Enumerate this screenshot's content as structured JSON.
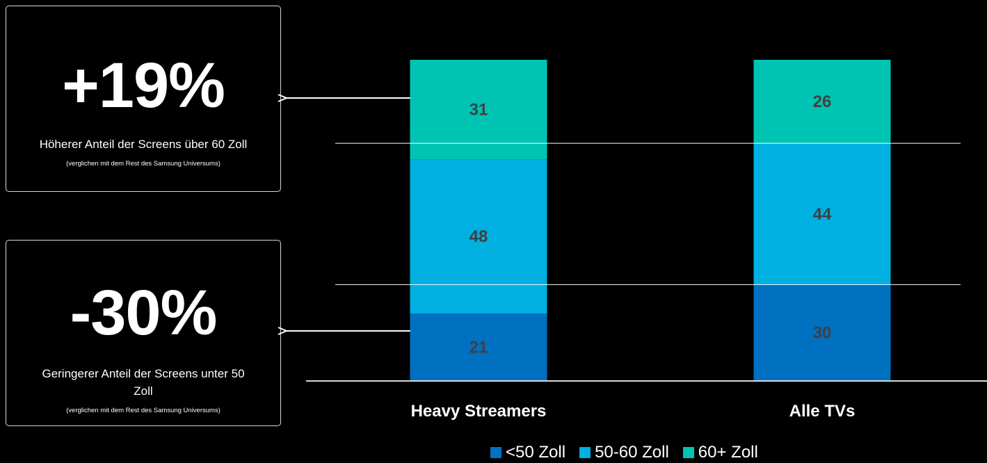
{
  "callouts": [
    {
      "value": "+19%",
      "description": "Höherer Anteil der Screens über 60 Zoll",
      "note": "(verglichen mit dem Rest des Samsung Universums)"
    },
    {
      "value": "-30%",
      "description": "Geringerer Anteil der Screens unter 50 Zoll",
      "note": "(verglichen mit dem Rest des Samsung Universums)"
    }
  ],
  "chart_data": {
    "type": "bar",
    "stacked": true,
    "categories": [
      "Heavy Streamers",
      "Alle TVs"
    ],
    "series": [
      {
        "name": "<50 Zoll",
        "values": [
          21,
          30
        ],
        "color": "#0070c0"
      },
      {
        "name": "50-60 Zoll",
        "values": [
          48,
          44
        ],
        "color": "#00b0e0"
      },
      {
        "name": "60+ Zoll",
        "values": [
          31,
          26
        ],
        "color": "#00c4b3"
      }
    ],
    "title": "",
    "xlabel": "",
    "ylabel": "",
    "ylim": [
      0,
      100
    ],
    "grid": false,
    "legend_position": "bottom",
    "colors": {
      "background": "#000000",
      "data_label": "#404040",
      "axis": "#d9d9d9"
    }
  }
}
